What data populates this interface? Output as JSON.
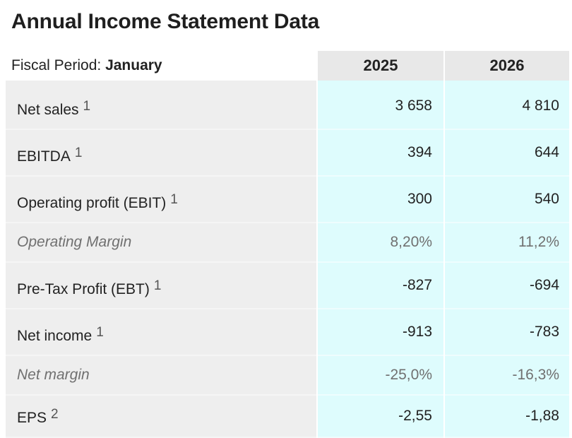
{
  "title": "Annual Income Statement Data",
  "header": {
    "fiscal_label": "Fiscal Period:",
    "fiscal_value": "January",
    "years": [
      "2025",
      "2026"
    ]
  },
  "rows": [
    {
      "label": "Net sales",
      "note": "1",
      "italic": false,
      "values": [
        "3 658",
        "4 810"
      ]
    },
    {
      "label": "EBITDA",
      "note": "1",
      "italic": false,
      "values": [
        "394",
        "644"
      ]
    },
    {
      "label": "Operating profit (EBIT)",
      "note": "1",
      "italic": false,
      "values": [
        "300",
        "540"
      ]
    },
    {
      "label": "Operating Margin",
      "note": "",
      "italic": true,
      "values": [
        "8,20%",
        "11,2%"
      ]
    },
    {
      "label": "Pre-Tax Profit (EBT)",
      "note": "1",
      "italic": false,
      "values": [
        "-827",
        "-694"
      ]
    },
    {
      "label": "Net income",
      "note": "1",
      "italic": false,
      "values": [
        "-913",
        "-783"
      ]
    },
    {
      "label": "Net margin",
      "note": "",
      "italic": true,
      "values": [
        "-25,0%",
        "-16,3%"
      ]
    },
    {
      "label": "EPS",
      "note": "2",
      "italic": false,
      "values": [
        "-2,55",
        "-1,88"
      ]
    }
  ]
}
